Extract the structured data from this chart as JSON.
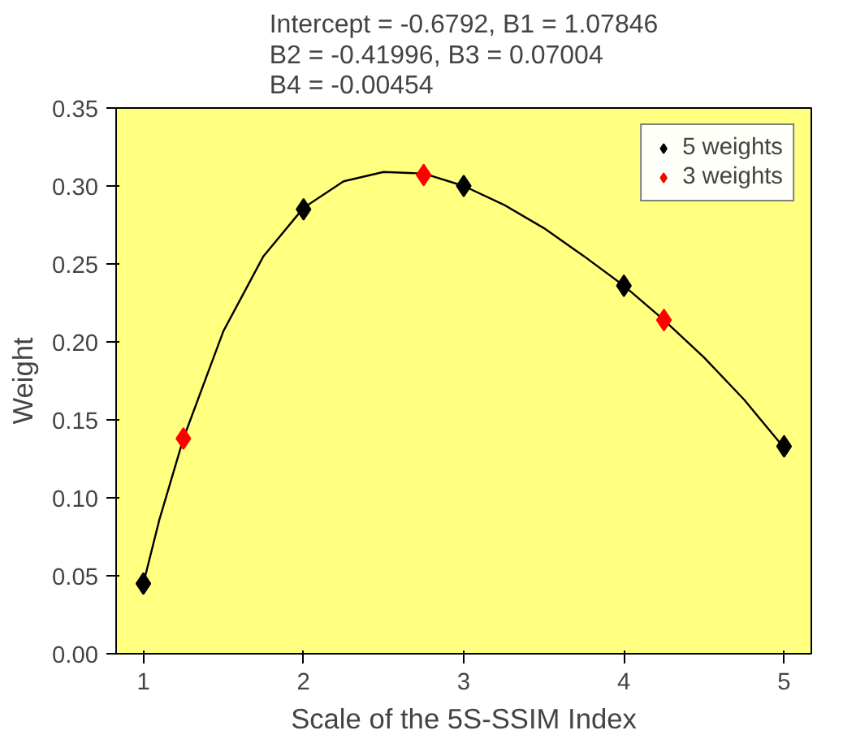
{
  "chart_data": {
    "type": "scatter",
    "title": "Intercept = -0.6792, B1 = 1.07846\nB2 = -0.41996, B3 = 0.07004\nB4 = -0.00454",
    "xlabel": "Scale of the 5S-SSIM Index",
    "ylabel": "Weight",
    "xlim": [
      0.83,
      5.17
    ],
    "ylim": [
      0,
      0.35
    ],
    "xticks": [
      1,
      2,
      3,
      4,
      5
    ],
    "yticks": [
      {
        "value": 0,
        "label": "0.00"
      },
      {
        "value": 0.05,
        "label": "0.05"
      },
      {
        "value": 0.1,
        "label": "0.10"
      },
      {
        "value": 0.15,
        "label": "0.15"
      },
      {
        "value": 0.2,
        "label": "0.20"
      },
      {
        "value": 0.25,
        "label": "0.25"
      },
      {
        "value": 0.3,
        "label": "0.30"
      },
      {
        "value": 0.35,
        "label": "0.35"
      }
    ],
    "grid": false,
    "legend": "top right",
    "series": [
      {
        "type": "line",
        "color": "#000000",
        "x": [
          1,
          1.1,
          1.25,
          1.5,
          1.75,
          2,
          2.25,
          2.5,
          2.75,
          3,
          3.25,
          3.5,
          3.75,
          4,
          4.25,
          4.5,
          4.75,
          5
        ],
        "values": [
          0.045,
          0.086,
          0.138,
          0.207,
          0.255,
          0.286,
          0.303,
          0.309,
          0.308,
          0.3,
          0.288,
          0.273,
          0.255,
          0.236,
          0.214,
          0.19,
          0.163,
          0.132
        ]
      },
      {
        "name": "5 weights",
        "marker": "diamond",
        "color": "#000000",
        "x": [
          1,
          2,
          3,
          4,
          5
        ],
        "values": [
          0.045,
          0.285,
          0.3,
          0.236,
          0.133
        ]
      },
      {
        "name": "3 weights",
        "marker": "diamond",
        "color": "#ff0000",
        "x": [
          1.25,
          2.75,
          4.25
        ],
        "values": [
          0.138,
          0.307,
          0.214
        ]
      }
    ]
  }
}
